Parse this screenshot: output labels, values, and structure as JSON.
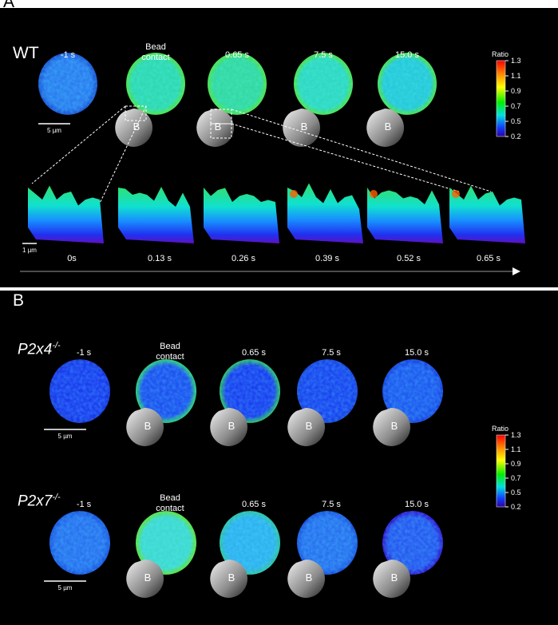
{
  "panel_a": {
    "label": "A",
    "genotype": "WT",
    "timepoints": [
      "-1 s",
      "Bead contact",
      "0.65 s",
      "7.5 s",
      "15.0 s"
    ],
    "scale_bar": "5 µm",
    "surface_timepoints": [
      "0s",
      "0.13 s",
      "0.26 s",
      "0.39 s",
      "0.52 s",
      "0.65 s"
    ],
    "surface_scale_bar": "1 µm",
    "colorbar": {
      "title": "Ratio",
      "ticks": [
        "1.3",
        "1.1",
        "0.9",
        "0.7",
        "0.5",
        "0.2"
      ]
    }
  },
  "panel_b": {
    "label": "B",
    "rows": [
      {
        "gene": "P2x4",
        "superscript": "-/-"
      },
      {
        "gene": "P2x7",
        "superscript": "-/-"
      }
    ],
    "timepoints": [
      "-1 s",
      "Bead contact",
      "0.65 s",
      "7.5 s",
      "15.0 s"
    ],
    "scale_bar": "5 µm",
    "colorbar": {
      "title": "Ratio",
      "ticks": [
        "1.3",
        "1.1",
        "0.9",
        "0.7",
        "0.5",
        "0.2"
      ]
    }
  },
  "bead_label": "B"
}
